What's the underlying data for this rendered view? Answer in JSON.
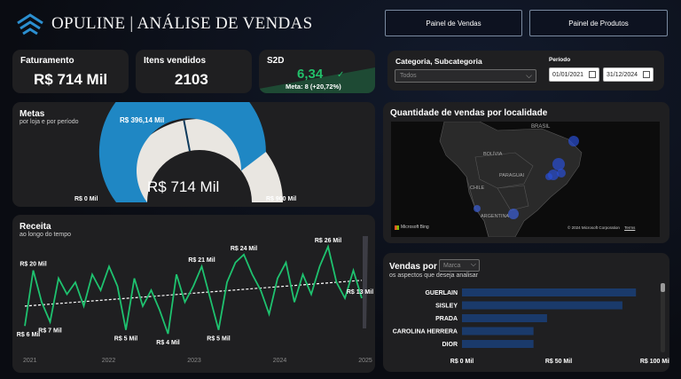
{
  "header": {
    "title": "OPULINE | ANÁLISE DE VENDAS",
    "nav": [
      {
        "label": "Painel de Vendas"
      },
      {
        "label": "Painel de Produtos"
      }
    ]
  },
  "kpis": {
    "faturamento": {
      "label": "Faturamento",
      "value": "R$ 714 Mil"
    },
    "itens": {
      "label": "Itens vendidos",
      "value": "2103"
    },
    "s2d": {
      "label": "S2D",
      "value": "6,34",
      "meta": "Meta: 8 (+20,72%)"
    }
  },
  "filters": {
    "categoria_label": "Categoria, Subcategoria",
    "categoria_value": "Todos",
    "periodo_label": "Período",
    "start_date": "01/01/2021",
    "end_date": "31/12/2024"
  },
  "metas": {
    "title": "Metas",
    "subtitle": "por loja e por período",
    "chart_data": {
      "type": "gauge",
      "value": 714,
      "target": 396.14,
      "min": 0,
      "max": 900,
      "value_label": "R$ 714 Mil",
      "target_label": "R$ 396,14 Mil",
      "min_label": "R$ 0 Mil",
      "max_label": "R$ 900 Mil",
      "colors": {
        "fill": "#1f87c4",
        "track": "#e9e6e1",
        "target": "#0e3a5c"
      }
    }
  },
  "mapa": {
    "title": "Quantidade de vendas por localidade",
    "labels": {
      "brasil": "BRASIL",
      "bolivia": "BOLÍVIA",
      "paraguai": "PARAGUAI",
      "chile": "CHILE",
      "argentina": "ARGENTINA"
    },
    "bing": "Microsoft Bing",
    "copyright": "© 2024 Microsoft Corporation",
    "terms": "Terms"
  },
  "receita": {
    "title": "Receita",
    "subtitle": "ao longo do tempo",
    "chart_data": {
      "type": "line",
      "x_ticks": [
        "2021",
        "2022",
        "2023",
        "2024",
        "2025"
      ],
      "values": [
        6,
        20,
        12,
        7,
        18,
        14,
        17,
        11,
        19,
        15,
        21,
        16,
        5,
        18,
        11,
        15,
        10,
        4,
        19,
        12,
        16,
        21,
        13,
        5,
        17,
        22,
        24,
        19,
        15,
        9,
        18,
        22,
        12,
        19,
        14,
        21,
        26,
        17,
        13,
        20,
        13
      ],
      "point_labels": [
        {
          "index": 0,
          "text": "R$ 6 Mil"
        },
        {
          "index": 1,
          "text": "R$ 20 Mil"
        },
        {
          "index": 3,
          "text": "R$ 7 Mil"
        },
        {
          "index": 12,
          "text": "R$ 5 Mil"
        },
        {
          "index": 17,
          "text": "R$ 4 Mil"
        },
        {
          "index": 21,
          "text": "R$ 21 Mil"
        },
        {
          "index": 23,
          "text": "R$ 5 Mil"
        },
        {
          "index": 26,
          "text": "R$ 24 Mil"
        },
        {
          "index": 36,
          "text": "R$ 26 Mil"
        },
        {
          "index": 40,
          "text": "R$ 13 Mil"
        }
      ],
      "trend": [
        11,
        17.5
      ],
      "ylim": [
        0,
        30
      ],
      "colors": {
        "line": "#1ec26f",
        "trend": "#ffffff"
      }
    }
  },
  "vendas": {
    "title": "Vendas por",
    "dropdown": "Marca",
    "subtitle": "os aspectos que deseja  analisar",
    "chart_data": {
      "type": "bar",
      "categories": [
        "GUERLAIN",
        "SISLEY",
        "PRADA",
        "CAROLINA HERRERA",
        "DIOR"
      ],
      "values": [
        90,
        83,
        44,
        37,
        37
      ],
      "xlim": [
        0,
        100
      ],
      "x_ticks": [
        "R$ 0 Mil",
        "R$ 50 Mil",
        "R$ 100 Mil"
      ],
      "colors": {
        "bar": "#1a3a6b"
      }
    }
  }
}
